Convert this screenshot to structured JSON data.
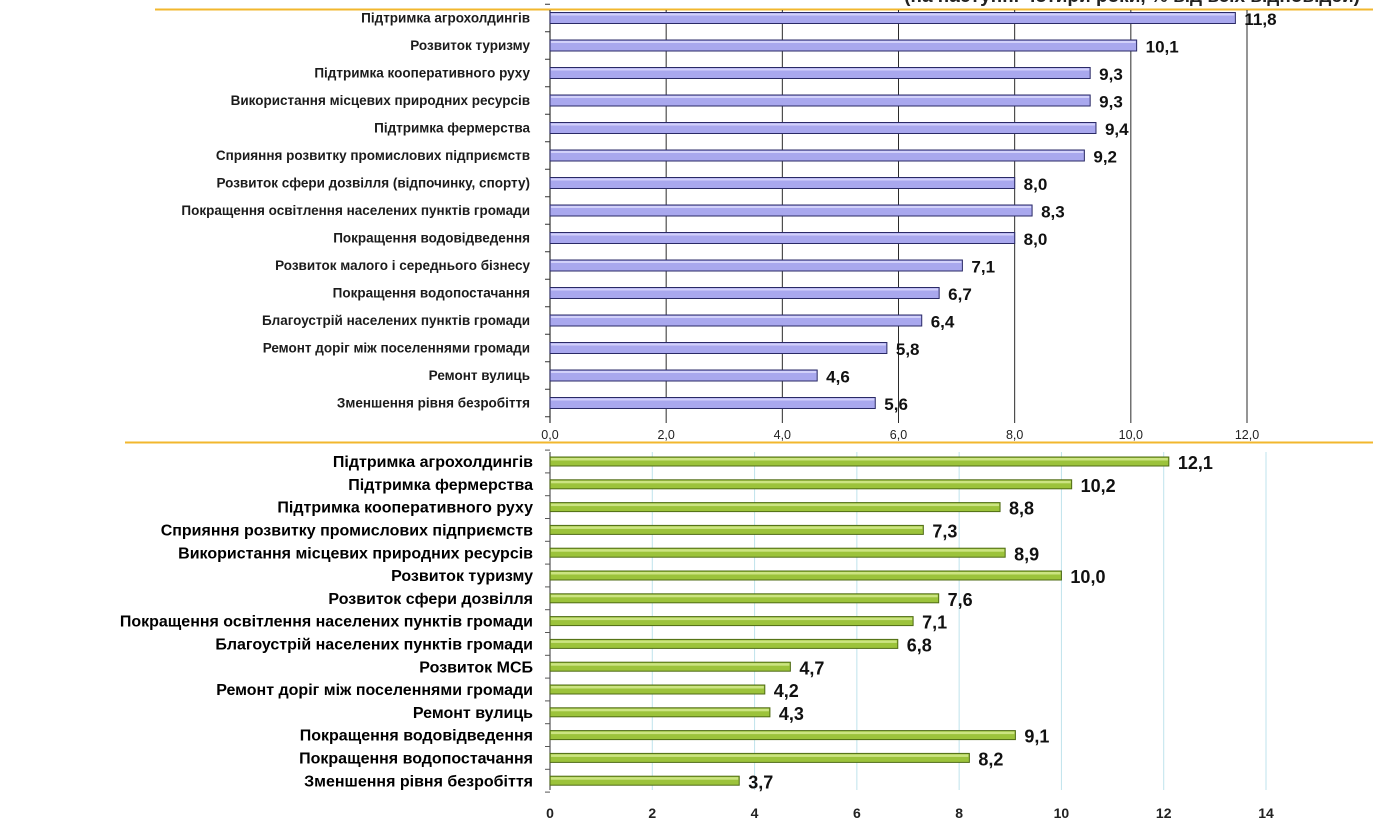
{
  "header": {
    "title": "(на наступні чотири роки, % від всіх відповідей)"
  },
  "colors": {
    "divider": "#f2b72e",
    "chart1_bar": "#a9a8ee",
    "chart1_bar_edge": "#2a2a66",
    "chart2_bar": "#9cc33b",
    "chart2_bar_edge": "#4f6b14",
    "chart2_grid": "#bfe3ec"
  },
  "chart_data": [
    {
      "type": "bar",
      "orientation": "horizontal",
      "categories": [
        "Підтримка агрохолдингів",
        "Розвиток туризму",
        "Підтримка кооперативного руху",
        "Використання місцевих природних ресурсів",
        "Підтримка фермерства",
        "Сприяння розвитку промислових підприємств",
        "Розвиток сфери дозвілля (відпочинку, спорту)",
        "Покращення освітлення населених пунктів громади",
        "Покращення водовідведення",
        "Розвиток малого і середнього бізнесу",
        "Покращення водопостачання",
        "Благоустрій населених пунктів громади",
        "Ремонт доріг між поселеннями громади",
        "Ремонт вулиць",
        "Зменшення рівня безробіття"
      ],
      "values": [
        11.8,
        10.1,
        9.3,
        9.3,
        9.4,
        9.2,
        8.0,
        8.3,
        8.0,
        7.1,
        6.7,
        6.4,
        5.8,
        4.6,
        5.6
      ],
      "value_labels": [
        "11,8",
        "10,1",
        "9,3",
        "9,3",
        "9,4",
        "9,2",
        "8,0",
        "8,3",
        "8,0",
        "7,1",
        "6,7",
        "6,4",
        "5,8",
        "4,6",
        "5,6"
      ],
      "xlim": [
        0,
        12
      ],
      "xticks": [
        "0,0",
        "2,0",
        "4,0",
        "6,0",
        "8,0",
        "10,0",
        "12,0"
      ],
      "grid": "vertical"
    },
    {
      "type": "bar",
      "orientation": "horizontal",
      "categories": [
        "Підтримка агрохолдингів",
        "Підтримка фермерства",
        "Підтримка кооперативного руху",
        "Сприяння розвитку промислових підприємств",
        "Використання місцевих природних ресурсів",
        "Розвиток туризму",
        "Розвиток сфери дозвілля",
        "Покращення освітлення населених пунктів громади",
        "Благоустрій населених пунктів громади",
        "Розвиток МСБ",
        "Ремонт доріг між поселеннями громади",
        "Ремонт вулиць",
        "Покращення водовідведення",
        "Покращення водопостачання",
        "Зменшення рівня безробіття"
      ],
      "values": [
        12.1,
        10.2,
        8.8,
        7.3,
        8.9,
        10.0,
        7.6,
        7.1,
        6.8,
        4.7,
        4.2,
        4.3,
        9.1,
        8.2,
        3.7
      ],
      "value_labels": [
        "12,1",
        "10,2",
        "8,8",
        "7,3",
        "8,9",
        "10,0",
        "7,6",
        "7,1",
        "6,8",
        "4,7",
        "4,2",
        "4,3",
        "9,1",
        "8,2",
        "3,7"
      ],
      "xlim": [
        0,
        14
      ],
      "xticks": [
        "0",
        "2",
        "4",
        "6",
        "8",
        "10",
        "12",
        "14"
      ],
      "grid": "vertical"
    }
  ]
}
